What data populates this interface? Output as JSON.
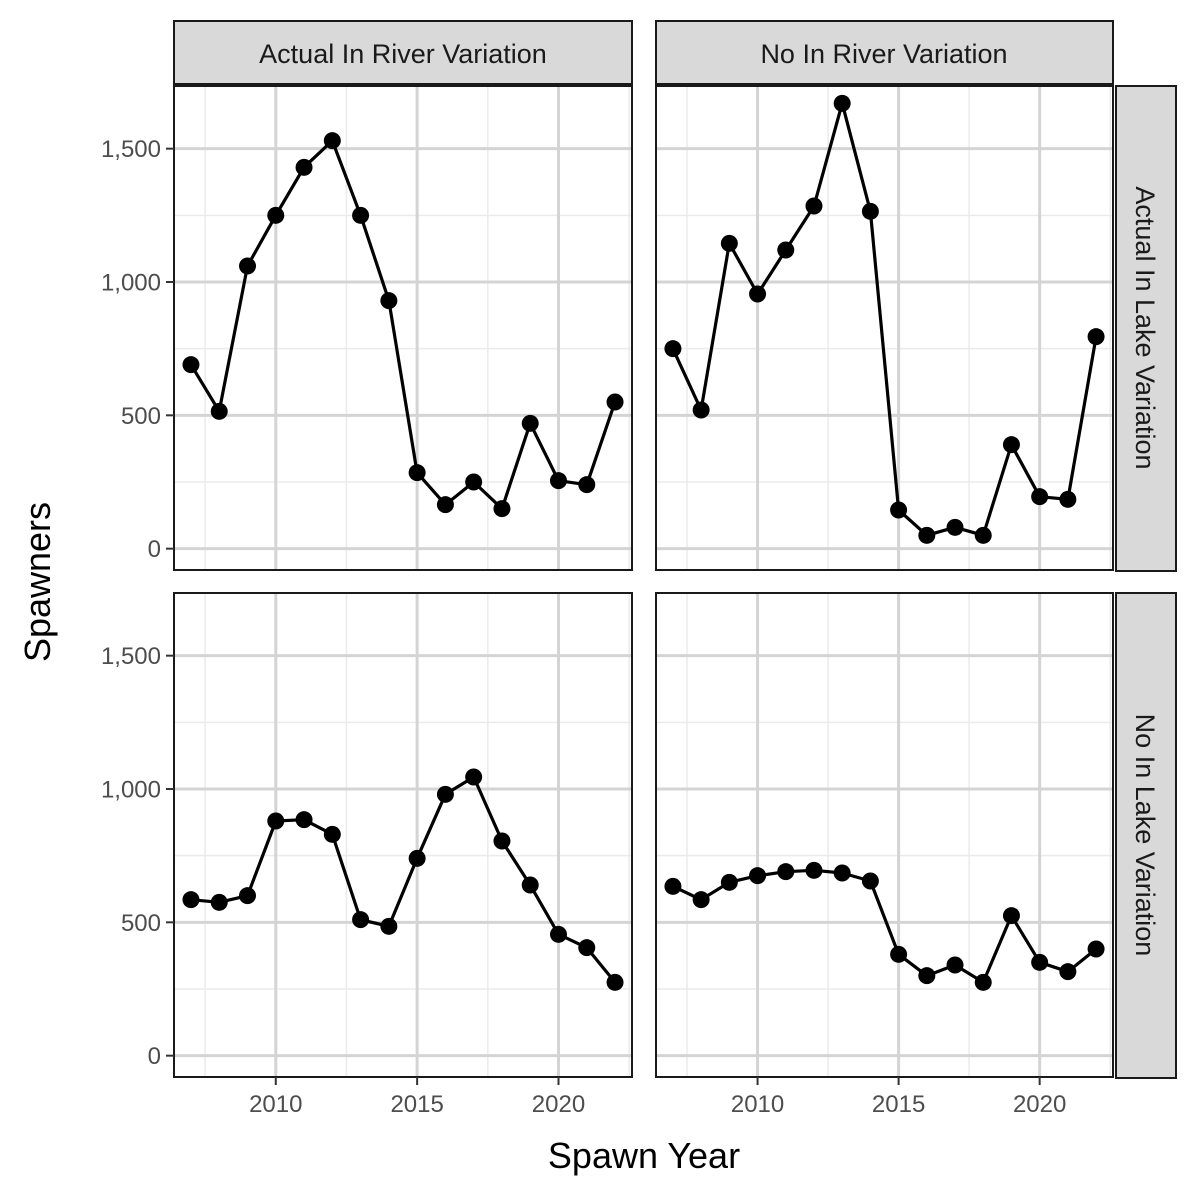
{
  "chart_data": {
    "type": "line",
    "xlabel": "Spawn Year",
    "ylabel": "Spawners",
    "xlim": [
      2006.4,
      2022.6
    ],
    "ylim": [
      -80,
      1735
    ],
    "x_ticks": [
      2010,
      2015,
      2020
    ],
    "x_tick_labels": [
      "2010",
      "2015",
      "2020"
    ],
    "y_ticks": [
      0,
      500,
      1000,
      1500
    ],
    "y_tick_labels": [
      "0",
      "500",
      "1,000",
      "1,500"
    ],
    "grid": true,
    "legend": "none",
    "column_facets": [
      "Actual In River Variation",
      "No In River Variation"
    ],
    "row_facets": [
      "Actual In Lake Variation",
      "No In Lake Variation"
    ],
    "x": [
      2007,
      2008,
      2009,
      2010,
      2011,
      2012,
      2013,
      2014,
      2015,
      2016,
      2017,
      2018,
      2019,
      2020,
      2021,
      2022
    ],
    "panels": [
      {
        "column": "Actual In River Variation",
        "row": "Actual In Lake Variation",
        "values": [
          690,
          515,
          1060,
          1250,
          1430,
          1530,
          1250,
          930,
          285,
          165,
          250,
          150,
          470,
          255,
          240,
          550
        ]
      },
      {
        "column": "No In River Variation",
        "row": "Actual In Lake Variation",
        "values": [
          750,
          520,
          1145,
          955,
          1120,
          1285,
          1670,
          1265,
          145,
          50,
          80,
          50,
          390,
          195,
          185,
          795
        ]
      },
      {
        "column": "Actual In River Variation",
        "row": "No In Lake Variation",
        "values": [
          585,
          575,
          600,
          880,
          885,
          830,
          510,
          485,
          740,
          980,
          1045,
          805,
          640,
          455,
          405,
          275
        ]
      },
      {
        "column": "No In River Variation",
        "row": "No In Lake Variation",
        "values": [
          635,
          585,
          650,
          675,
          690,
          695,
          685,
          655,
          380,
          300,
          340,
          275,
          525,
          350,
          315,
          400
        ]
      }
    ]
  }
}
